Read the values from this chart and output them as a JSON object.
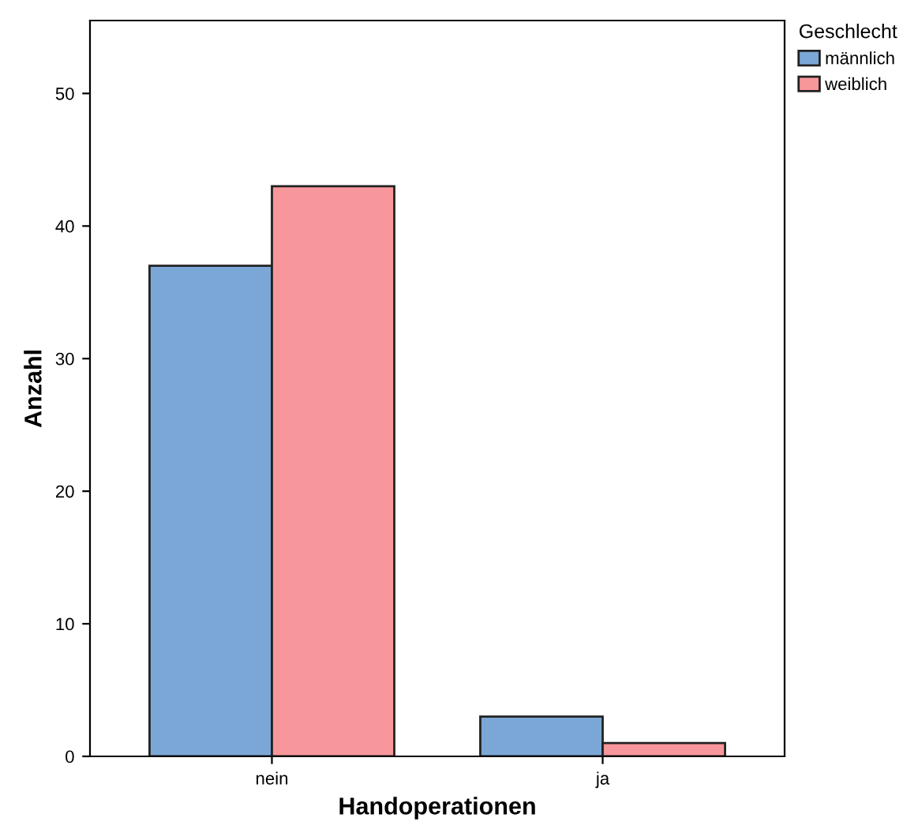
{
  "chart_data": {
    "type": "bar",
    "xlabel": "Handoperationen",
    "ylabel": "Anzahl",
    "legend_title": "Geschlecht",
    "categories": [
      "nein",
      "ja"
    ],
    "series": [
      {
        "name": "männlich",
        "color": "#7ba7d6",
        "values": [
          37,
          3
        ]
      },
      {
        "name": "weiblich",
        "color": "#f8979b",
        "values": [
          43,
          1
        ]
      }
    ],
    "ylim": [
      0,
      55.5
    ],
    "yticks": [
      0,
      10,
      20,
      30,
      40,
      50
    ],
    "grid": false,
    "legend": "top right"
  }
}
